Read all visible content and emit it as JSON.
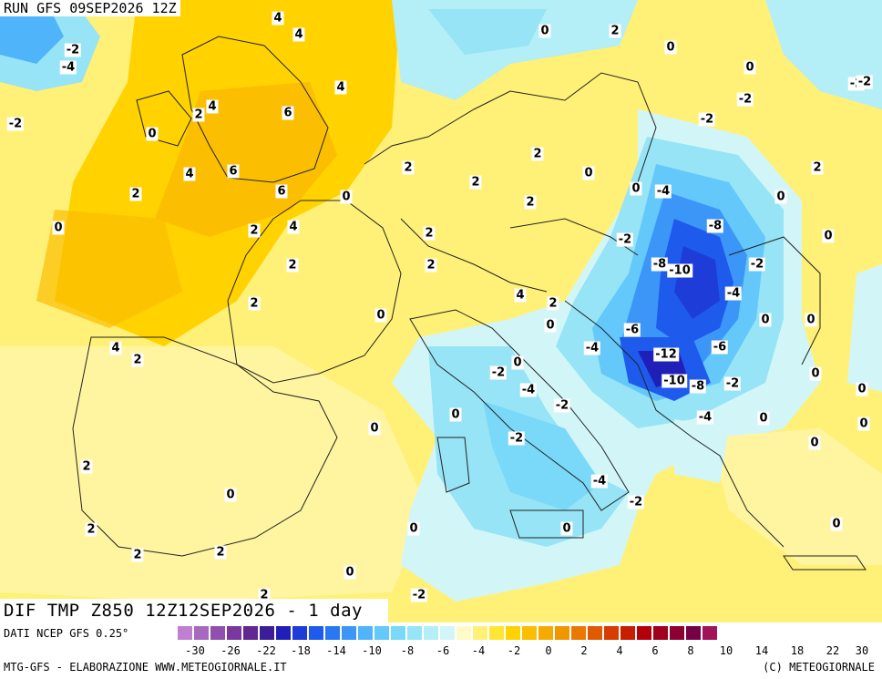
{
  "header": {
    "run": "RUN GFS 09SEP2026 12Z"
  },
  "title": "DIF TMP Z850 12Z12SEP2026 - 1 day",
  "legend": {
    "source": "DATI NCEP GFS 0.25°",
    "colors": [
      "#c080d0",
      "#a868c0",
      "#9050b0",
      "#7838a0",
      "#602890",
      "#3c1e9a",
      "#2020b8",
      "#1e3cd8",
      "#1e5aec",
      "#2878f4",
      "#3c96f8",
      "#50b4fa",
      "#64c8fa",
      "#7ad8f8",
      "#96e4f6",
      "#b4eef6",
      "#d2f6f8",
      "#fffac8",
      "#fff078",
      "#ffe632",
      "#ffd200",
      "#fbbe00",
      "#f5aa00",
      "#f09600",
      "#eb7800",
      "#e15a00",
      "#d73c00",
      "#c81e00",
      "#b4000a",
      "#a0001e",
      "#8c0032",
      "#780046",
      "#a0145a"
    ],
    "ticks": [
      "-30",
      "-26",
      "-22",
      "-18",
      "-14",
      "-10",
      "-8",
      "-6",
      "-4",
      "-2",
      "0",
      "2",
      "4",
      "6",
      "8",
      "10",
      "14",
      "18",
      "22",
      "30"
    ]
  },
  "credits": {
    "left": "MTG-GFS - ELABORAZIONE WWW.METEOGIORNALE.IT",
    "right": "(C) METEOGIORNALE"
  },
  "map_labels": [
    "4",
    "4",
    "-2",
    "-4",
    "4",
    "-2",
    "2",
    "4",
    "6",
    "0",
    "4",
    "6",
    "6",
    "2",
    "0",
    "2",
    "4",
    "2",
    "0",
    "2",
    "2",
    "0",
    "2",
    "0",
    "2",
    "-2",
    "-4",
    "-8",
    "-8",
    "-10",
    "-2",
    "-4",
    "-6",
    "-6",
    "-12",
    "-4",
    "-10",
    "-8",
    "-2",
    "-4",
    "0",
    "0",
    "4",
    "2",
    "2",
    "0",
    "-2",
    "0",
    "-4",
    "-2",
    "0",
    "-2",
    "2",
    "0",
    "2",
    "0",
    "-4",
    "-2",
    "0",
    "4",
    "2",
    "2",
    "2",
    "-2",
    "2",
    "0",
    "0",
    "-2",
    "0",
    "0",
    "2",
    "0",
    "-2",
    "-2",
    "-2",
    "0",
    "0",
    "0",
    "0",
    "0",
    "2",
    "0",
    "0",
    "0",
    "0",
    "2",
    "2"
  ]
}
